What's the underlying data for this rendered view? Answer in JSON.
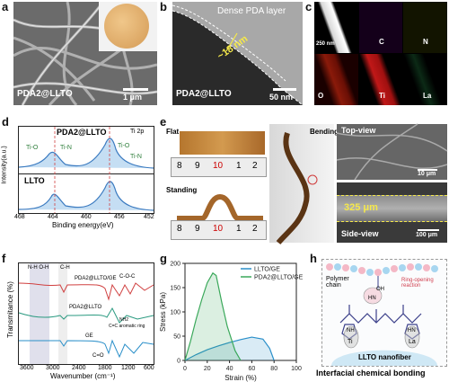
{
  "panels": {
    "a": {
      "label": "a",
      "caption": "PDA2@LLTO",
      "scale": "1 μm"
    },
    "b": {
      "label": "b",
      "annotation": "Dense PDA layer",
      "thickness": "~18 nm",
      "caption": "PDA2@LLTO",
      "scale": "50 nm"
    },
    "c": {
      "label": "c",
      "scale": "250 nm",
      "maps": [
        "C",
        "N",
        "O",
        "Ti",
        "La"
      ]
    },
    "d": {
      "label": "d",
      "title_top": "PDA2@LLTO",
      "subtitle": "Ti 2p",
      "title_bottom": "LLTO",
      "peaks_top": [
        "Ti-O",
        "Ti-N",
        "Ti-O",
        "Ti-N"
      ],
      "ylabel": "Intensity(a.u.)",
      "xlabel": "Binding energy(eV)",
      "xticks": [
        "468",
        "464",
        "460",
        "456",
        "452"
      ]
    },
    "e": {
      "label": "e",
      "flat": "Flat",
      "standing": "Standing",
      "bending": "Bending",
      "topview": "Top-view",
      "sideview": "Side-view",
      "scale_top": "10 μm",
      "scale_side": "100 μm",
      "thickness": "325 μm",
      "ruler": [
        "8",
        "9",
        "10",
        "1",
        "2"
      ]
    },
    "f": {
      "label": "f",
      "ylabel": "Transmitance (%)",
      "xlabel": "Wavenumber (cm⁻¹)",
      "xticks": [
        "3600",
        "3000",
        "2400",
        "1800",
        "1200",
        "600"
      ],
      "region_labels": [
        "N-H O-H",
        "C-H",
        "C-O-C",
        "C=O"
      ],
      "series_labels": [
        "PDA2@LLTO/GE",
        "PDA2@LLTO",
        "GE"
      ],
      "notes": [
        "NH2",
        "C=C aromatic ring"
      ]
    },
    "g": {
      "label": "g",
      "ylabel": "Stress (kPa)",
      "xlabel": "Strain (%)"
    },
    "h": {
      "label": "h",
      "polymer": "Polymer chain",
      "reaction": "Ring-opening reaction",
      "oh": "OH",
      "hn": "HN",
      "nh": "NH",
      "ti": "Ti",
      "la": "La",
      "fiber": "LLTO nanofiber",
      "caption": "Interfacial chemical bonding"
    }
  },
  "chart_data": [
    {
      "type": "line",
      "title": "",
      "xlabel": "Strain (%)",
      "ylabel": "Stress (kPa)",
      "xlim": [
        0,
        100
      ],
      "ylim": [
        0,
        200
      ],
      "xticks": [
        0,
        20,
        40,
        60,
        80,
        100
      ],
      "yticks": [
        0,
        50,
        100,
        150,
        200
      ],
      "legend": "top-right",
      "series": [
        {
          "name": "LLTO/GE",
          "color": "#2a8fc9",
          "x": [
            0,
            10,
            20,
            30,
            40,
            50,
            60,
            70,
            76,
            80
          ],
          "y": [
            0,
            12,
            22,
            30,
            37,
            43,
            48,
            44,
            25,
            0
          ]
        },
        {
          "name": "PDA2@LLTO/GE",
          "color": "#3aa85a",
          "x": [
            0,
            5,
            10,
            15,
            20,
            25,
            28,
            33,
            38,
            45,
            50
          ],
          "y": [
            0,
            40,
            85,
            125,
            160,
            180,
            175,
            120,
            70,
            20,
            0
          ]
        }
      ]
    }
  ]
}
